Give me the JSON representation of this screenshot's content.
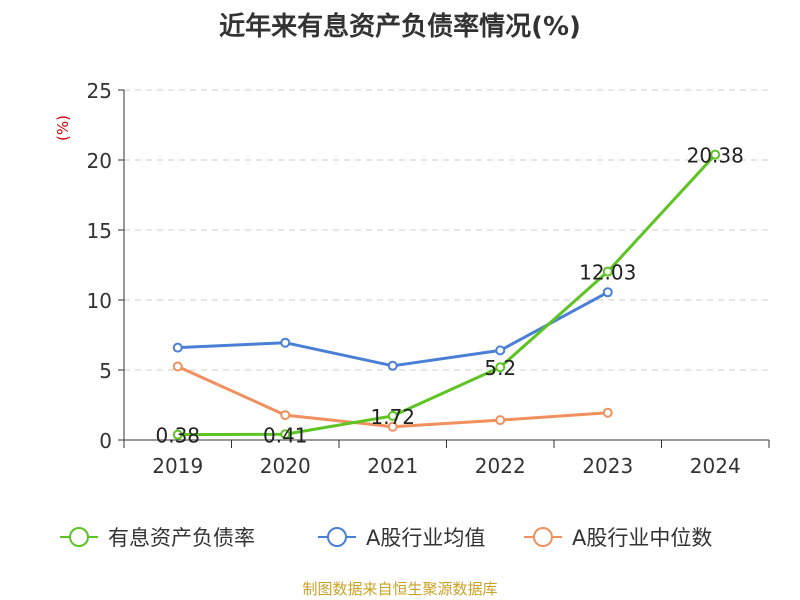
{
  "chart_data": {
    "type": "line",
    "title": "近年来有息资产负债率情况(%)",
    "ylabel": "(%)",
    "categories": [
      "2019",
      "2020",
      "2021",
      "2022",
      "2023",
      "2024"
    ],
    "ylim": [
      0,
      25
    ],
    "yticks": [
      0,
      5,
      10,
      15,
      20,
      25
    ],
    "grid": true,
    "legend_position": "bottom",
    "series": [
      {
        "name": "有息资产负债率",
        "color": "#5ec424",
        "values": [
          0.38,
          0.41,
          1.72,
          5.2,
          12.03,
          20.38
        ],
        "labels": [
          "0.38",
          "0.41",
          "1.72",
          "5.2",
          "12.03",
          "20.38"
        ]
      },
      {
        "name": "A股行业均值",
        "color": "#4a7fd6",
        "values": [
          6.6,
          6.95,
          5.3,
          6.4,
          10.55,
          null
        ]
      },
      {
        "name": "A股行业中位数",
        "color": "#f0905e",
        "values": [
          5.25,
          1.78,
          0.95,
          1.42,
          1.95,
          null
        ]
      }
    ],
    "source": "制图数据来自恒生聚源数据库"
  }
}
